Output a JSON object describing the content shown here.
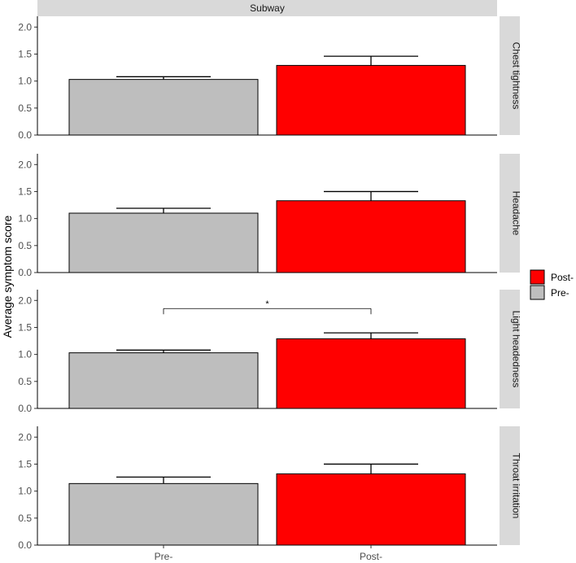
{
  "chart_data": {
    "type": "bar",
    "column_strip": "Subway",
    "ylabel": "Average symptom score",
    "xlabel": "",
    "categories": [
      "Pre-",
      "Post-"
    ],
    "ylim": [
      0,
      2.2
    ],
    "yticks": [
      0.0,
      0.5,
      1.0,
      1.5,
      2.0
    ],
    "ytick_labels": [
      "0.0",
      "0.5",
      "1.0",
      "1.5",
      "2.0"
    ],
    "legend": {
      "position": "right",
      "entries": [
        {
          "label": "Post-",
          "color": "#ff0000"
        },
        {
          "label": "Pre-",
          "color": "#bebebe"
        }
      ]
    },
    "colors": {
      "Pre-": "#bebebe",
      "Post-": "#ff0000",
      "strip": "#d9d9d9"
    },
    "panels": [
      {
        "name": "Chest tightness",
        "values": [
          1.03,
          1.29
        ],
        "errors": [
          0.05,
          0.17
        ],
        "significance": null
      },
      {
        "name": "Headache",
        "values": [
          1.1,
          1.33
        ],
        "errors": [
          0.09,
          0.17
        ],
        "significance": null
      },
      {
        "name": "Light headedness",
        "values": [
          1.03,
          1.29
        ],
        "errors": [
          0.05,
          0.11
        ],
        "significance": {
          "label": "*",
          "from": "Pre-",
          "to": "Post-",
          "y": 1.85
        }
      },
      {
        "name": "Throat irritation",
        "values": [
          1.14,
          1.32
        ],
        "errors": [
          0.12,
          0.18
        ],
        "significance": null
      }
    ]
  }
}
